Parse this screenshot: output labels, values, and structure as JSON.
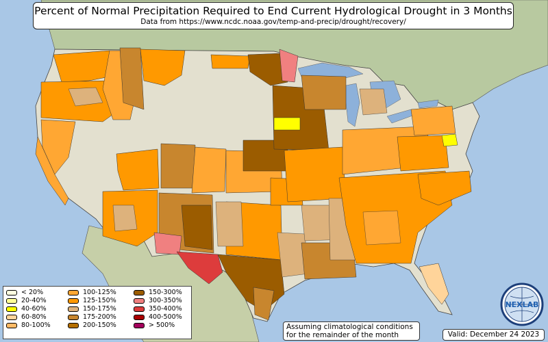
{
  "title": "Percent of Normal Precipitation Required to End Current Hydrological Drought in 3 Months",
  "subtitle": "Data from https://www.ncdc.noaa.gov/temp-and-precip/drought/recovery/",
  "note_line1": "Assuming climatological conditions",
  "note_line2": "for the remainder of the month",
  "valid": "Valid: December 24 2023",
  "logo_text": "NEXLAB",
  "colors": {
    "ocean": "#a9c7e6",
    "land": "#e3e0cf",
    "land_outside": "#b8c9a0",
    "great_lakes": "#8db1da"
  },
  "legend": [
    {
      "label": "< 20%",
      "color": "#ffffe0"
    },
    {
      "label": "20-40%",
      "color": "#ffff99"
    },
    {
      "label": "40-60%",
      "color": "#ffff00"
    },
    {
      "label": "60-80%",
      "color": "#ffd49a"
    },
    {
      "label": "80-100%",
      "color": "#ffba66"
    },
    {
      "label": "100-125%",
      "color": "#ffa733"
    },
    {
      "label": "125-150%",
      "color": "#ff9900"
    },
    {
      "label": "150-175%",
      "color": "#ddb27c"
    },
    {
      "label": "175-200%",
      "color": "#c8862e"
    },
    {
      "label": "200-150%",
      "color": "#b46e00"
    },
    {
      "label": "150-300%",
      "color": "#9b5c00"
    },
    {
      "label": "300-350%",
      "color": "#f08080"
    },
    {
      "label": "350-400%",
      "color": "#dd3c3c"
    },
    {
      "label": "400-500%",
      "color": "#aa0000"
    },
    {
      "label": "> 500%",
      "color": "#a3005c"
    }
  ]
}
